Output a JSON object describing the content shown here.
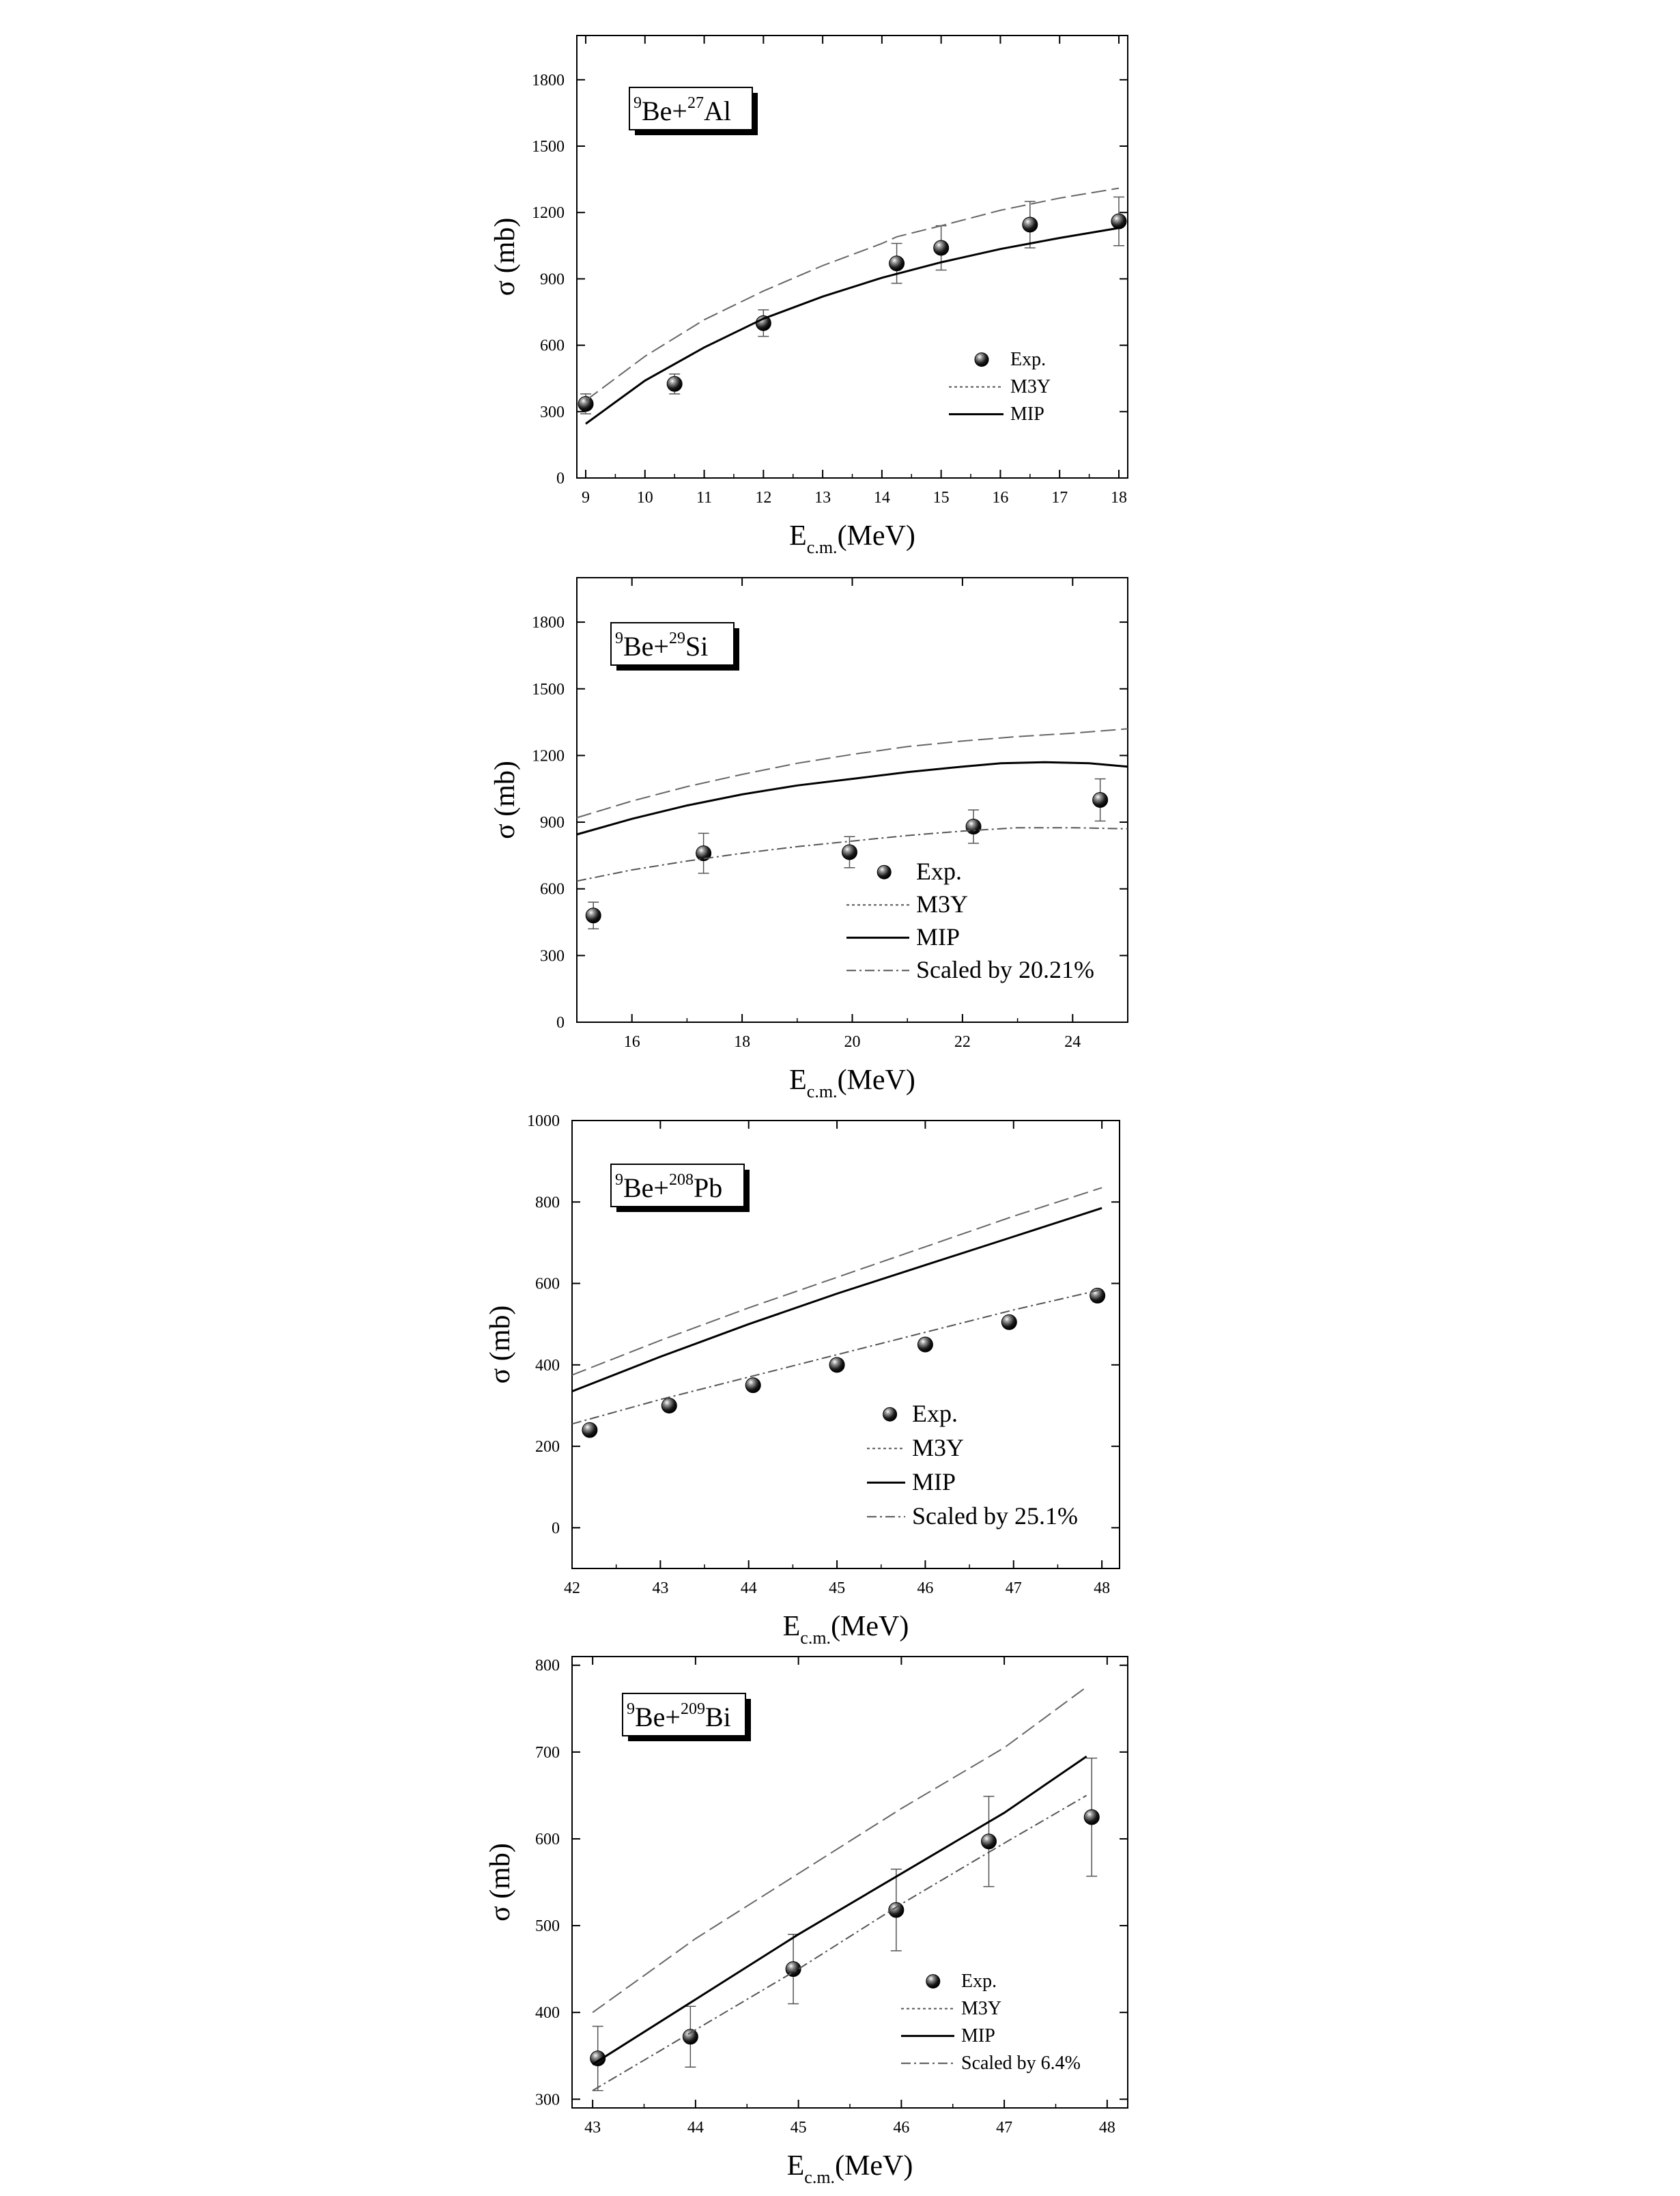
{
  "chart_data": [
    {
      "type": "line",
      "reaction": {
        "pre_sup": "9",
        "a": "Be+",
        "mid_sup": "27",
        "b": "Al"
      },
      "xlabel_main": "E",
      "xlabel_sub": "c.m.",
      "xlabel_unit": "(MeV)",
      "ylabel": "σ (mb)",
      "xlim": [
        8.85,
        18.15
      ],
      "ylim": [
        0,
        2000
      ],
      "xticks": [
        9,
        10,
        11,
        12,
        13,
        14,
        15,
        16,
        17,
        18
      ],
      "xticklabels": [
        "9",
        "10",
        "11",
        "12",
        "13",
        "14",
        "15",
        "16",
        "17",
        "18"
      ],
      "yticks": [
        0,
        300,
        600,
        900,
        1200,
        1500,
        1800
      ],
      "yticklabels": [
        "0",
        "300",
        "600",
        "900",
        "1200",
        "1500",
        "1800"
      ],
      "legend": {
        "position": "bottom-right",
        "entries": [
          "Exp.",
          "M3Y",
          "MIP"
        ]
      },
      "series": [
        {
          "name": "Exp.",
          "kind": "points",
          "x": [
            9,
            10.5,
            12,
            14.25,
            15,
            16.5,
            18
          ],
          "y": [
            335,
            425,
            700,
            970,
            1040,
            1145,
            1160
          ],
          "err": [
            45,
            45,
            60,
            90,
            100,
            105,
            110
          ]
        },
        {
          "name": "M3Y",
          "kind": "dash",
          "x": [
            9,
            10,
            11,
            12,
            13,
            14,
            14.25,
            15,
            16,
            17,
            18
          ],
          "y": [
            350,
            550,
            715,
            845,
            960,
            1060,
            1090,
            1140,
            1210,
            1265,
            1310
          ]
        },
        {
          "name": "MIP",
          "kind": "solid",
          "x": [
            9,
            10,
            11,
            12,
            13,
            14,
            15,
            16,
            17,
            18
          ],
          "y": [
            245,
            440,
            590,
            720,
            820,
            905,
            975,
            1035,
            1085,
            1130
          ]
        }
      ]
    },
    {
      "type": "line",
      "reaction": {
        "pre_sup": "9",
        "a": "Be+",
        "mid_sup": "29",
        "b": "Si"
      },
      "xlabel_main": "E",
      "xlabel_sub": "c.m.",
      "xlabel_unit": "(MeV)",
      "ylabel": "σ (mb)",
      "xlim": [
        15,
        25
      ],
      "ylim": [
        0,
        2000
      ],
      "xticks": [
        16,
        18,
        20,
        22,
        24
      ],
      "xticklabels": [
        "16",
        "18",
        "20",
        "22",
        "24"
      ],
      "yticks": [
        0,
        300,
        600,
        900,
        1200,
        1500,
        1800
      ],
      "yticklabels": [
        "0",
        "300",
        "600",
        "900",
        "1200",
        "1500",
        "1800"
      ],
      "legend": {
        "position": "bottom-right",
        "entries": [
          "Exp.",
          "M3Y",
          "MIP",
          "Scaled by 20.21%"
        ]
      },
      "series": [
        {
          "name": "Exp.",
          "kind": "points",
          "x": [
            15.3,
            17.3,
            19.95,
            22.2,
            24.5
          ],
          "y": [
            480,
            760,
            765,
            880,
            1000
          ],
          "err": [
            60,
            90,
            70,
            75,
            95
          ]
        },
        {
          "name": "M3Y",
          "kind": "dash",
          "x": [
            15,
            16,
            17,
            18,
            19,
            20,
            21,
            22,
            23,
            24,
            25
          ],
          "y": [
            920,
            995,
            1060,
            1115,
            1165,
            1205,
            1240,
            1265,
            1285,
            1300,
            1320
          ]
        },
        {
          "name": "MIP",
          "kind": "solid",
          "x": [
            15,
            16,
            17,
            18,
            19,
            20,
            21,
            22,
            22.7,
            23.5,
            24.3,
            25
          ],
          "y": [
            845,
            915,
            975,
            1025,
            1065,
            1095,
            1125,
            1150,
            1165,
            1170,
            1165,
            1150
          ]
        },
        {
          "name": "Scaled by 20.21%",
          "kind": "dashdot",
          "x": [
            15,
            16,
            17,
            18,
            19,
            20,
            21,
            22,
            23,
            24,
            25
          ],
          "y": [
            635,
            685,
            725,
            760,
            790,
            815,
            840,
            860,
            875,
            875,
            870
          ]
        }
      ]
    },
    {
      "type": "line",
      "reaction": {
        "pre_sup": "9",
        "a": "Be+",
        "mid_sup": "208",
        "b": "Pb"
      },
      "xlabel_main": "E",
      "xlabel_sub": "c.m.",
      "xlabel_unit": "(MeV)",
      "ylabel": "σ (mb)",
      "xlim": [
        42,
        48.2
      ],
      "ylim": [
        -100,
        1000
      ],
      "xticks": [
        42,
        43,
        44,
        45,
        46,
        47,
        48
      ],
      "xticklabels": [
        "42",
        "43",
        "44",
        "45",
        "46",
        "47",
        "48"
      ],
      "yticks": [
        0,
        200,
        400,
        600,
        800,
        1000
      ],
      "yticklabels": [
        "0",
        "200",
        "400",
        "600",
        "800",
        "1000"
      ],
      "legend": {
        "position": "bottom-right",
        "entries": [
          "Exp.",
          "M3Y",
          "MIP",
          "Scaled by 25.1%"
        ]
      },
      "series": [
        {
          "name": "Exp.",
          "kind": "points",
          "x": [
            42.2,
            43.1,
            44.05,
            45,
            46,
            46.95,
            47.95
          ],
          "y": [
            240,
            300,
            350,
            400,
            450,
            505,
            570
          ],
          "err": [
            0,
            0,
            0,
            0,
            0,
            0,
            0
          ]
        },
        {
          "name": "M3Y",
          "kind": "dash",
          "x": [
            42,
            43,
            44,
            45,
            46,
            47,
            48
          ],
          "y": [
            375,
            460,
            540,
            615,
            690,
            765,
            835
          ]
        },
        {
          "name": "MIP",
          "kind": "solid",
          "x": [
            42,
            43,
            44,
            45,
            46,
            47,
            48
          ],
          "y": [
            335,
            420,
            500,
            575,
            645,
            715,
            785
          ]
        },
        {
          "name": "Scaled by 25.1%",
          "kind": "dashdot",
          "x": [
            42,
            43,
            44,
            45,
            46,
            47,
            48
          ],
          "y": [
            255,
            315,
            370,
            425,
            480,
            535,
            585
          ]
        }
      ]
    },
    {
      "type": "line",
      "reaction": {
        "pre_sup": "9",
        "a": "Be+",
        "mid_sup": "209",
        "b": "Bi"
      },
      "xlabel_main": "E",
      "xlabel_sub": "c.m.",
      "xlabel_unit": "(MeV)",
      "ylabel": "σ (mb)",
      "xlim": [
        42.8,
        48.2
      ],
      "ylim": [
        290,
        810
      ],
      "xticks": [
        43,
        44,
        45,
        46,
        47,
        48
      ],
      "xticklabels": [
        "43",
        "44",
        "45",
        "46",
        "47",
        "48"
      ],
      "yticks": [
        300,
        400,
        500,
        600,
        700,
        800
      ],
      "yticklabels": [
        "300",
        "400",
        "500",
        "600",
        "700",
        "800"
      ],
      "legend": {
        "position": "bottom-right",
        "entries": [
          "Exp.",
          "M3Y",
          "MIP",
          "Scaled by 6.4%"
        ]
      },
      "series": [
        {
          "name": "Exp.",
          "kind": "points",
          "x": [
            43.05,
            43.95,
            44.95,
            45.95,
            46.85,
            47.85
          ],
          "y": [
            347,
            372,
            450,
            518,
            597,
            625
          ],
          "err": [
            37,
            35,
            40,
            47,
            52,
            68
          ]
        },
        {
          "name": "M3Y",
          "kind": "dash",
          "x": [
            43,
            44,
            45,
            46,
            47,
            47.8
          ],
          "y": [
            400,
            485,
            560,
            635,
            705,
            775
          ]
        },
        {
          "name": "MIP",
          "kind": "solid",
          "x": [
            43,
            44,
            45,
            46,
            47,
            47.8
          ],
          "y": [
            340,
            415,
            490,
            560,
            630,
            695
          ]
        },
        {
          "name": "Scaled by 6.4%",
          "kind": "dashdot",
          "x": [
            43,
            44,
            45,
            46,
            47,
            47.8
          ],
          "y": [
            310,
            380,
            450,
            525,
            595,
            650
          ]
        }
      ]
    }
  ]
}
